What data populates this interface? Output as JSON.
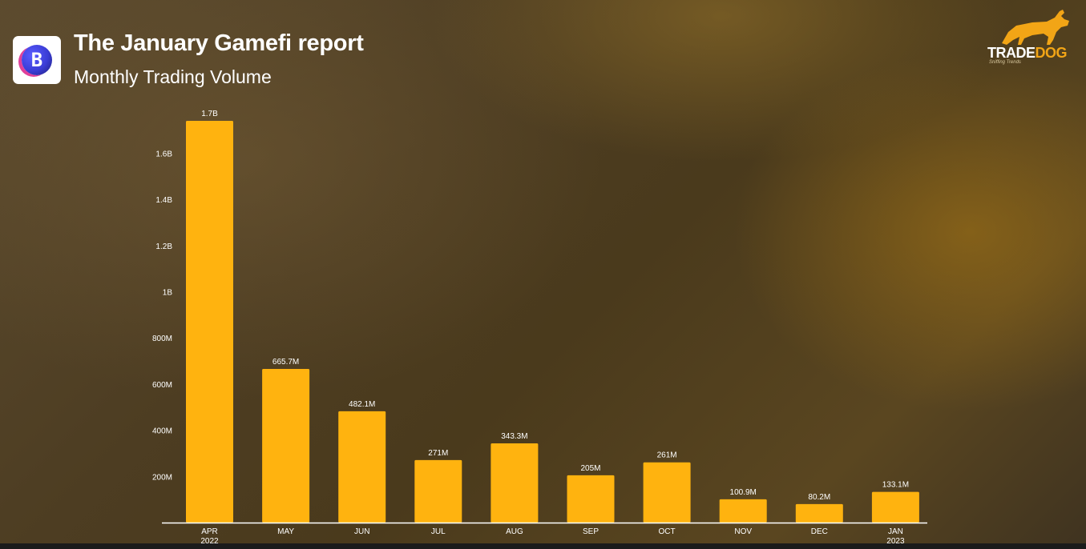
{
  "header": {
    "title": "The January Gamefi report",
    "subtitle": "Monthly Trading Volume",
    "logo_icon": "b-letter-logo-icon"
  },
  "brand": {
    "name_part1": "TRADE",
    "name_part2": "DOG",
    "tagline": "Sniffing Trends",
    "icon": "dog-icon",
    "accent_color": "#f2a516"
  },
  "chart_data": {
    "type": "bar",
    "title": "Monthly Trading Volume",
    "xlabel": "",
    "ylabel": "",
    "bar_color": "#ffb30f",
    "categories": [
      "APR 2022",
      "MAY",
      "JUN",
      "JUL",
      "AUG",
      "SEP",
      "OCT",
      "NOV",
      "DEC",
      "JAN 2023"
    ],
    "category_lines": [
      [
        "APR",
        "2022"
      ],
      [
        "MAY"
      ],
      [
        "JUN"
      ],
      [
        "JUL"
      ],
      [
        "AUG"
      ],
      [
        "SEP"
      ],
      [
        "OCT"
      ],
      [
        "NOV"
      ],
      [
        "DEC"
      ],
      [
        "JAN",
        "2023"
      ]
    ],
    "values": [
      1740000000,
      665700000,
      482100000,
      271000000,
      343300000,
      205000000,
      261000000,
      100900000,
      80200000,
      133100000
    ],
    "data_labels": [
      "1.7B",
      "665.7M",
      "482.1M",
      "271M",
      "343.3M",
      "205M",
      "261M",
      "100.9M",
      "80.2M",
      "133.1M"
    ],
    "yticks": [
      200000000,
      400000000,
      600000000,
      800000000,
      1000000000,
      1200000000,
      1400000000,
      1600000000
    ],
    "ytick_labels": [
      "200M",
      "400M",
      "600M",
      "800M",
      "1B",
      "1.2B",
      "1.4B",
      "1.6B"
    ],
    "ylim": [
      0,
      1740000000
    ],
    "grid": false,
    "legend": "none"
  }
}
